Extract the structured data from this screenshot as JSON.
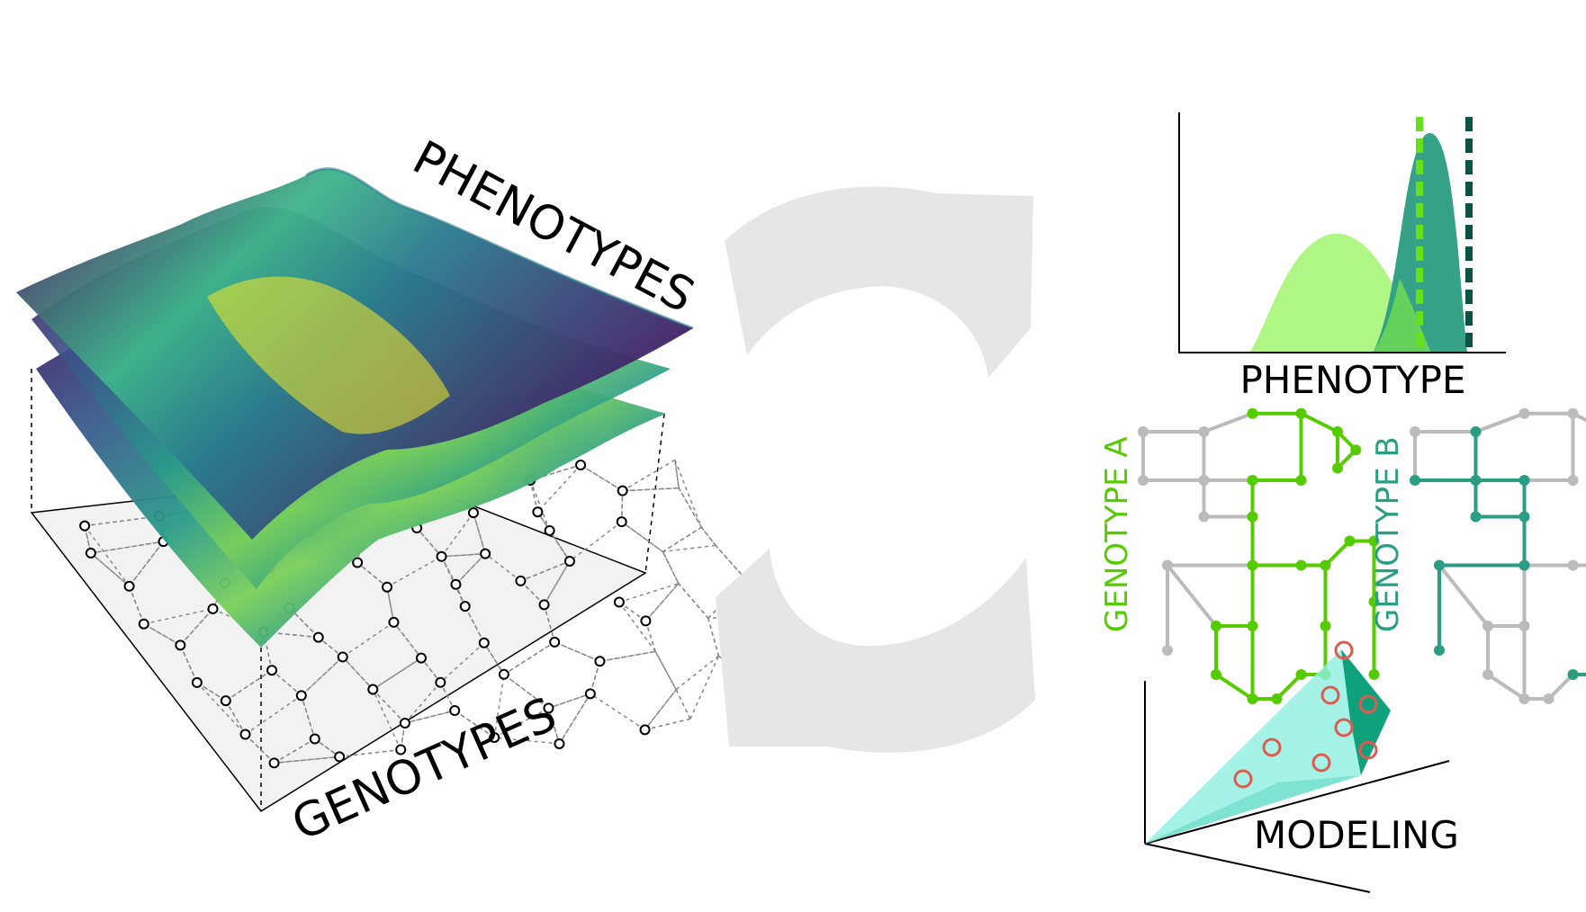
{
  "labels": {
    "phenotypes": "PHENOTYPES",
    "genotypes": "GENOTYPES",
    "phenotype_axis": "PHENOTYPE",
    "genotype_a": "GENOTYPE A",
    "genotype_b": "GENOTYPE B",
    "modeling": "MODELING"
  },
  "colors": {
    "surface_dark": "#46105e",
    "surface_mid": "#2a9b8a",
    "surface_light": "#f5e926",
    "grid_plane": "#f2f2f2",
    "arrow": "#e6e6e6",
    "dist_light": "#a6f57a",
    "dist_dark": "#2a9d82",
    "dash_light": "#66e01a",
    "dash_dark": "#0b5444",
    "genotype_a": "#55cc00",
    "genotype_b": "#2a9d82",
    "network_gray": "#bbbbbb",
    "cone": "#8ef0e0",
    "cone_dark": "#0fa07c",
    "sample_points": "#e05a50"
  }
}
